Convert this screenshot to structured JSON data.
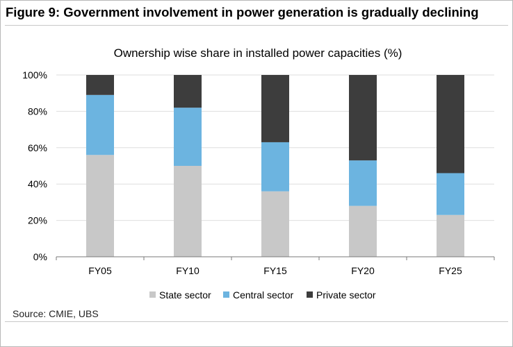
{
  "figure_title": "Figure 9: Government involvement in power generation is gradually declining",
  "source": "Source: CMIE, UBS",
  "chart_data": {
    "type": "bar",
    "stacked": true,
    "title": "Ownership wise share in installed power capacities (%)",
    "xlabel": "",
    "ylabel": "",
    "categories": [
      "FY05",
      "FY10",
      "FY15",
      "FY20",
      "FY25"
    ],
    "series": [
      {
        "name": "State sector",
        "color": "#c8c8c8",
        "values": [
          56,
          50,
          36,
          28,
          23
        ]
      },
      {
        "name": "Central sector",
        "color": "#6cb4e0",
        "values": [
          33,
          32,
          27,
          25,
          23
        ]
      },
      {
        "name": "Private sector",
        "color": "#3d3d3d",
        "values": [
          11,
          18,
          37,
          47,
          54
        ]
      }
    ],
    "ylim": [
      0,
      100
    ],
    "yticks": [
      "0%",
      "20%",
      "40%",
      "60%",
      "80%",
      "100%"
    ],
    "grid": true,
    "legend_position": "bottom"
  }
}
